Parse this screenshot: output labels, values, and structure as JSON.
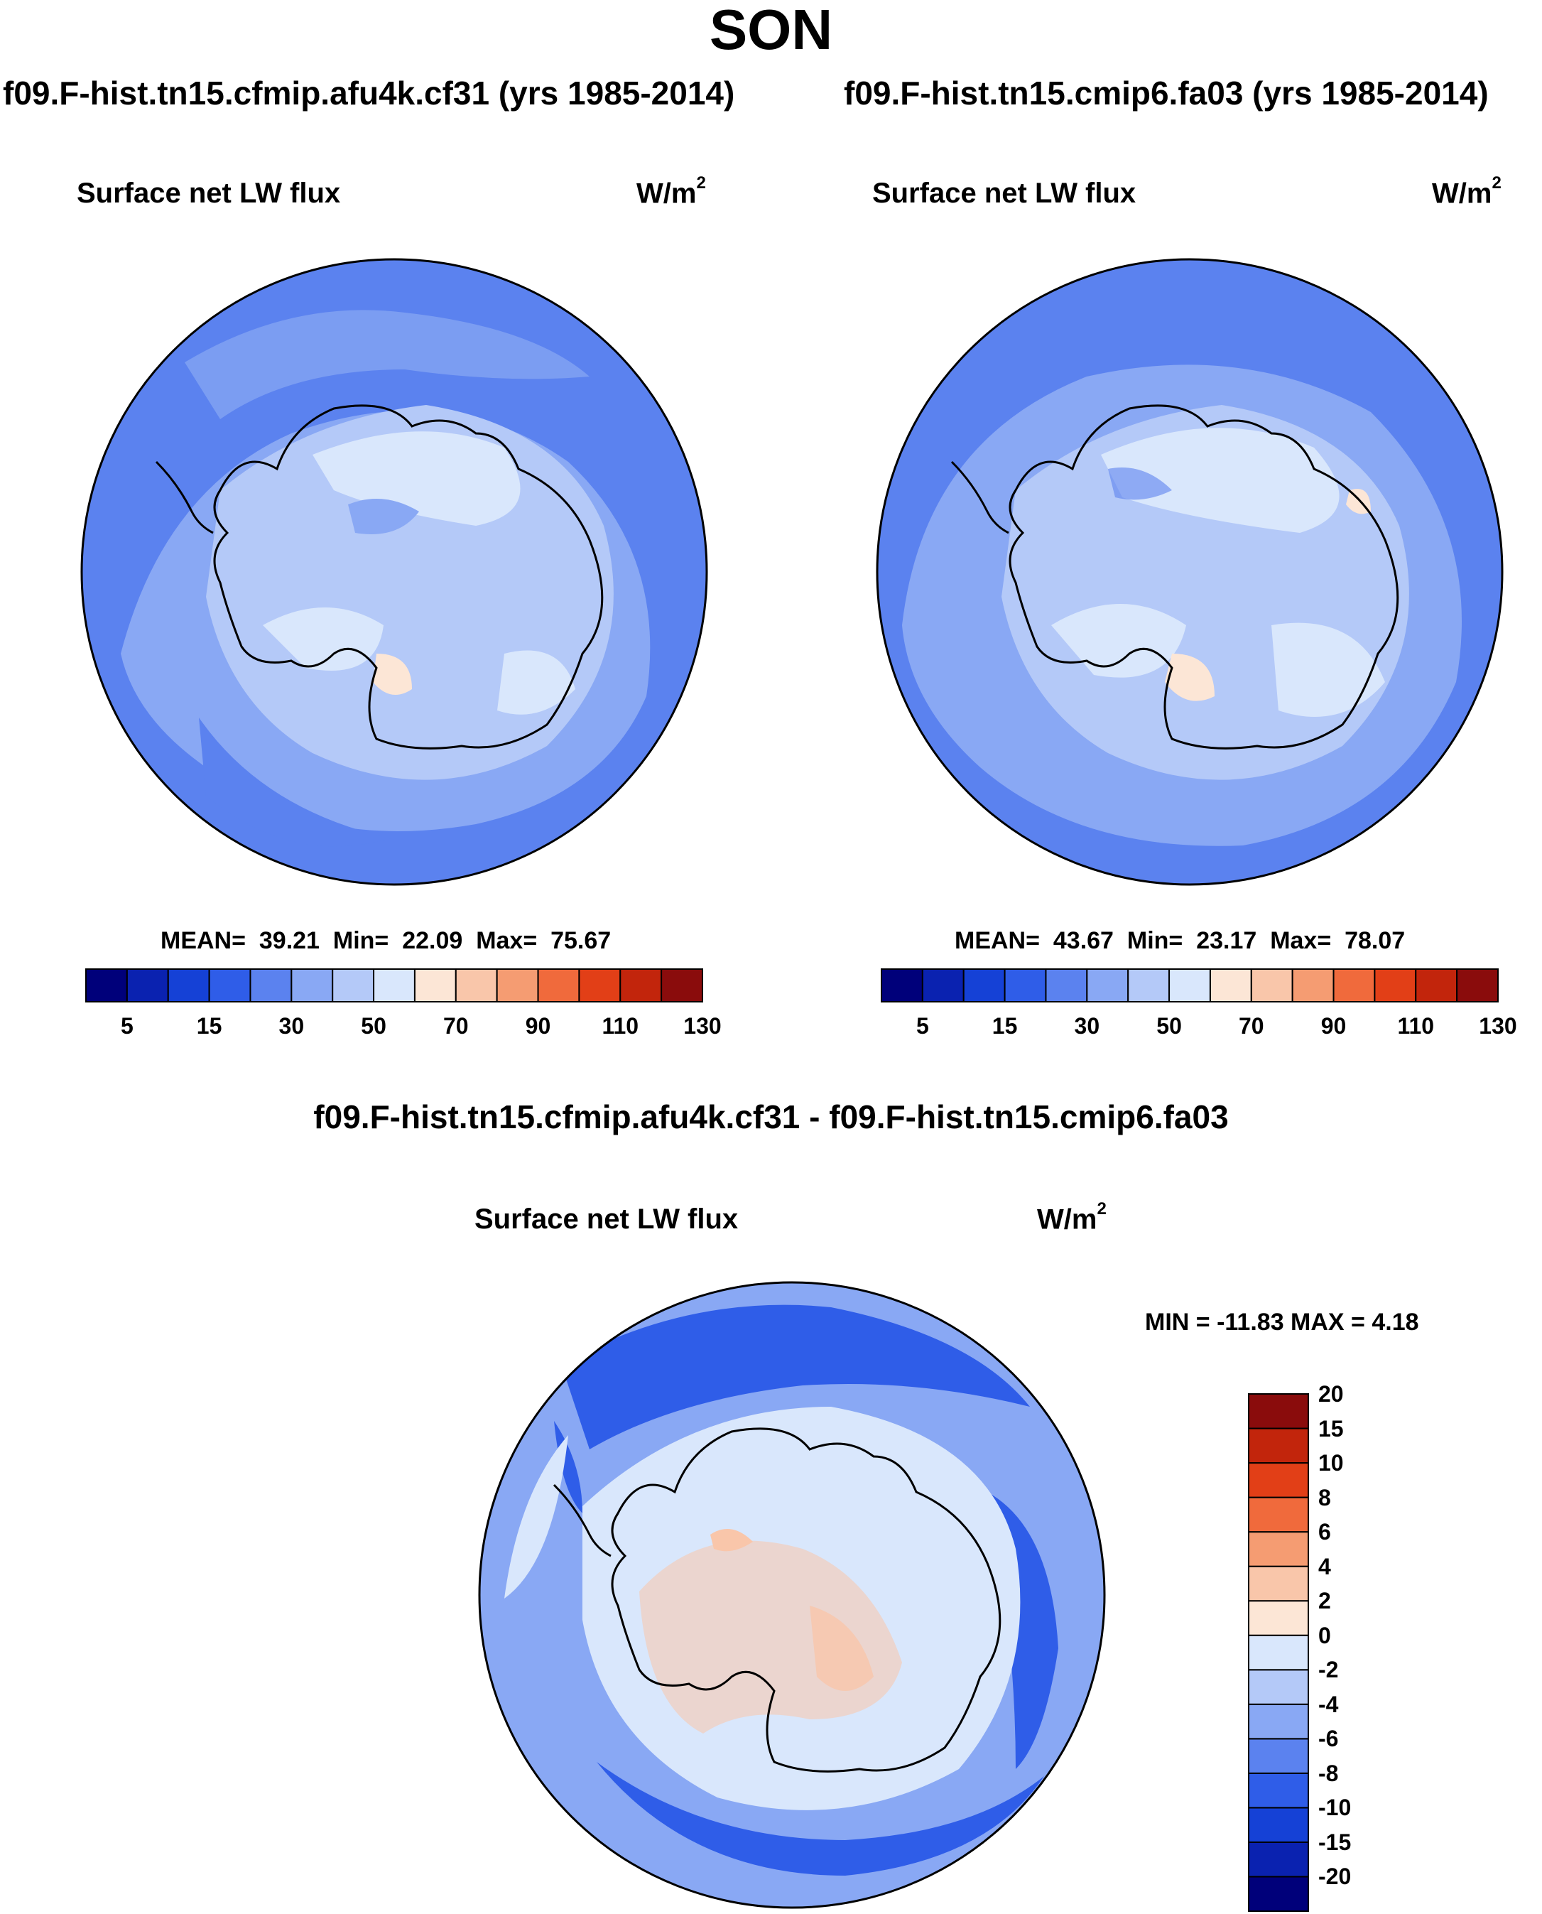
{
  "title": "SON",
  "panels": [
    {
      "case": "f09.F-hist.tn15.cfmip.afu4k.cf31 (yrs 1985-2014)",
      "variable": "Surface net LW flux",
      "units": "W/m",
      "units_sup": "2",
      "stats": {
        "mean_label": "MEAN=",
        "mean": "39.21",
        "min_label": "Min=",
        "min": "22.09",
        "max_label": "Max=",
        "max": "75.67"
      }
    },
    {
      "case": "f09.F-hist.tn15.cmip6.fa03 (yrs 1985-2014)",
      "variable": "Surface net LW flux",
      "units": "W/m",
      "units_sup": "2",
      "stats": {
        "mean_label": "MEAN=",
        "mean": "43.67",
        "min_label": "Min=",
        "min": "23.17",
        "max_label": "Max=",
        "max": "78.07"
      }
    }
  ],
  "diff_panel": {
    "case": "f09.F-hist.tn15.cfmip.afu4k.cf31 - f09.F-hist.tn15.cmip6.fa03",
    "variable": "Surface net LW flux",
    "units": "W/m",
    "units_sup": "2",
    "stats": "MIN = -11.83 MAX =   4.18"
  },
  "colorbar_abs": {
    "colors": [
      "#00007a",
      "#0a22b0",
      "#1541d6",
      "#2f5de8",
      "#5b82ef",
      "#89a8f4",
      "#b4c9f8",
      "#d9e7fc",
      "#fce6d6",
      "#f9c6aa",
      "#f59c72",
      "#f06a3c",
      "#e23f17",
      "#c2250c",
      "#8a0c0c"
    ],
    "tick_labels": [
      "5",
      "15",
      "30",
      "50",
      "70",
      "90",
      "110",
      "130"
    ]
  },
  "colorbar_diff": {
    "colors": [
      "#00007a",
      "#0a22b0",
      "#1541d6",
      "#2f5de8",
      "#5b82ef",
      "#89a8f4",
      "#b4c9f8",
      "#d9e7fc",
      "#fce6d6",
      "#f9c6aa",
      "#f59c72",
      "#f06a3c",
      "#e23f17",
      "#c2250c",
      "#8a0c0c"
    ],
    "tick_labels": [
      "-20",
      "-15",
      "-10",
      "-8",
      "-6",
      "-4",
      "-2",
      "0",
      "2",
      "4",
      "6",
      "8",
      "10",
      "15",
      "20"
    ]
  },
  "map_colors": {
    "ocean_abs": "#5b82ef",
    "ocean_light": "#89a8f4",
    "ice_abs": "#b4c9f8",
    "ice_light": "#d9e7fc",
    "warm": "#fce6d6",
    "diff_ocean": "#89a8f4",
    "diff_strong": "#2f5de8",
    "diff_ice": "#d9e7fc",
    "diff_warm": "#f9c6aa"
  }
}
